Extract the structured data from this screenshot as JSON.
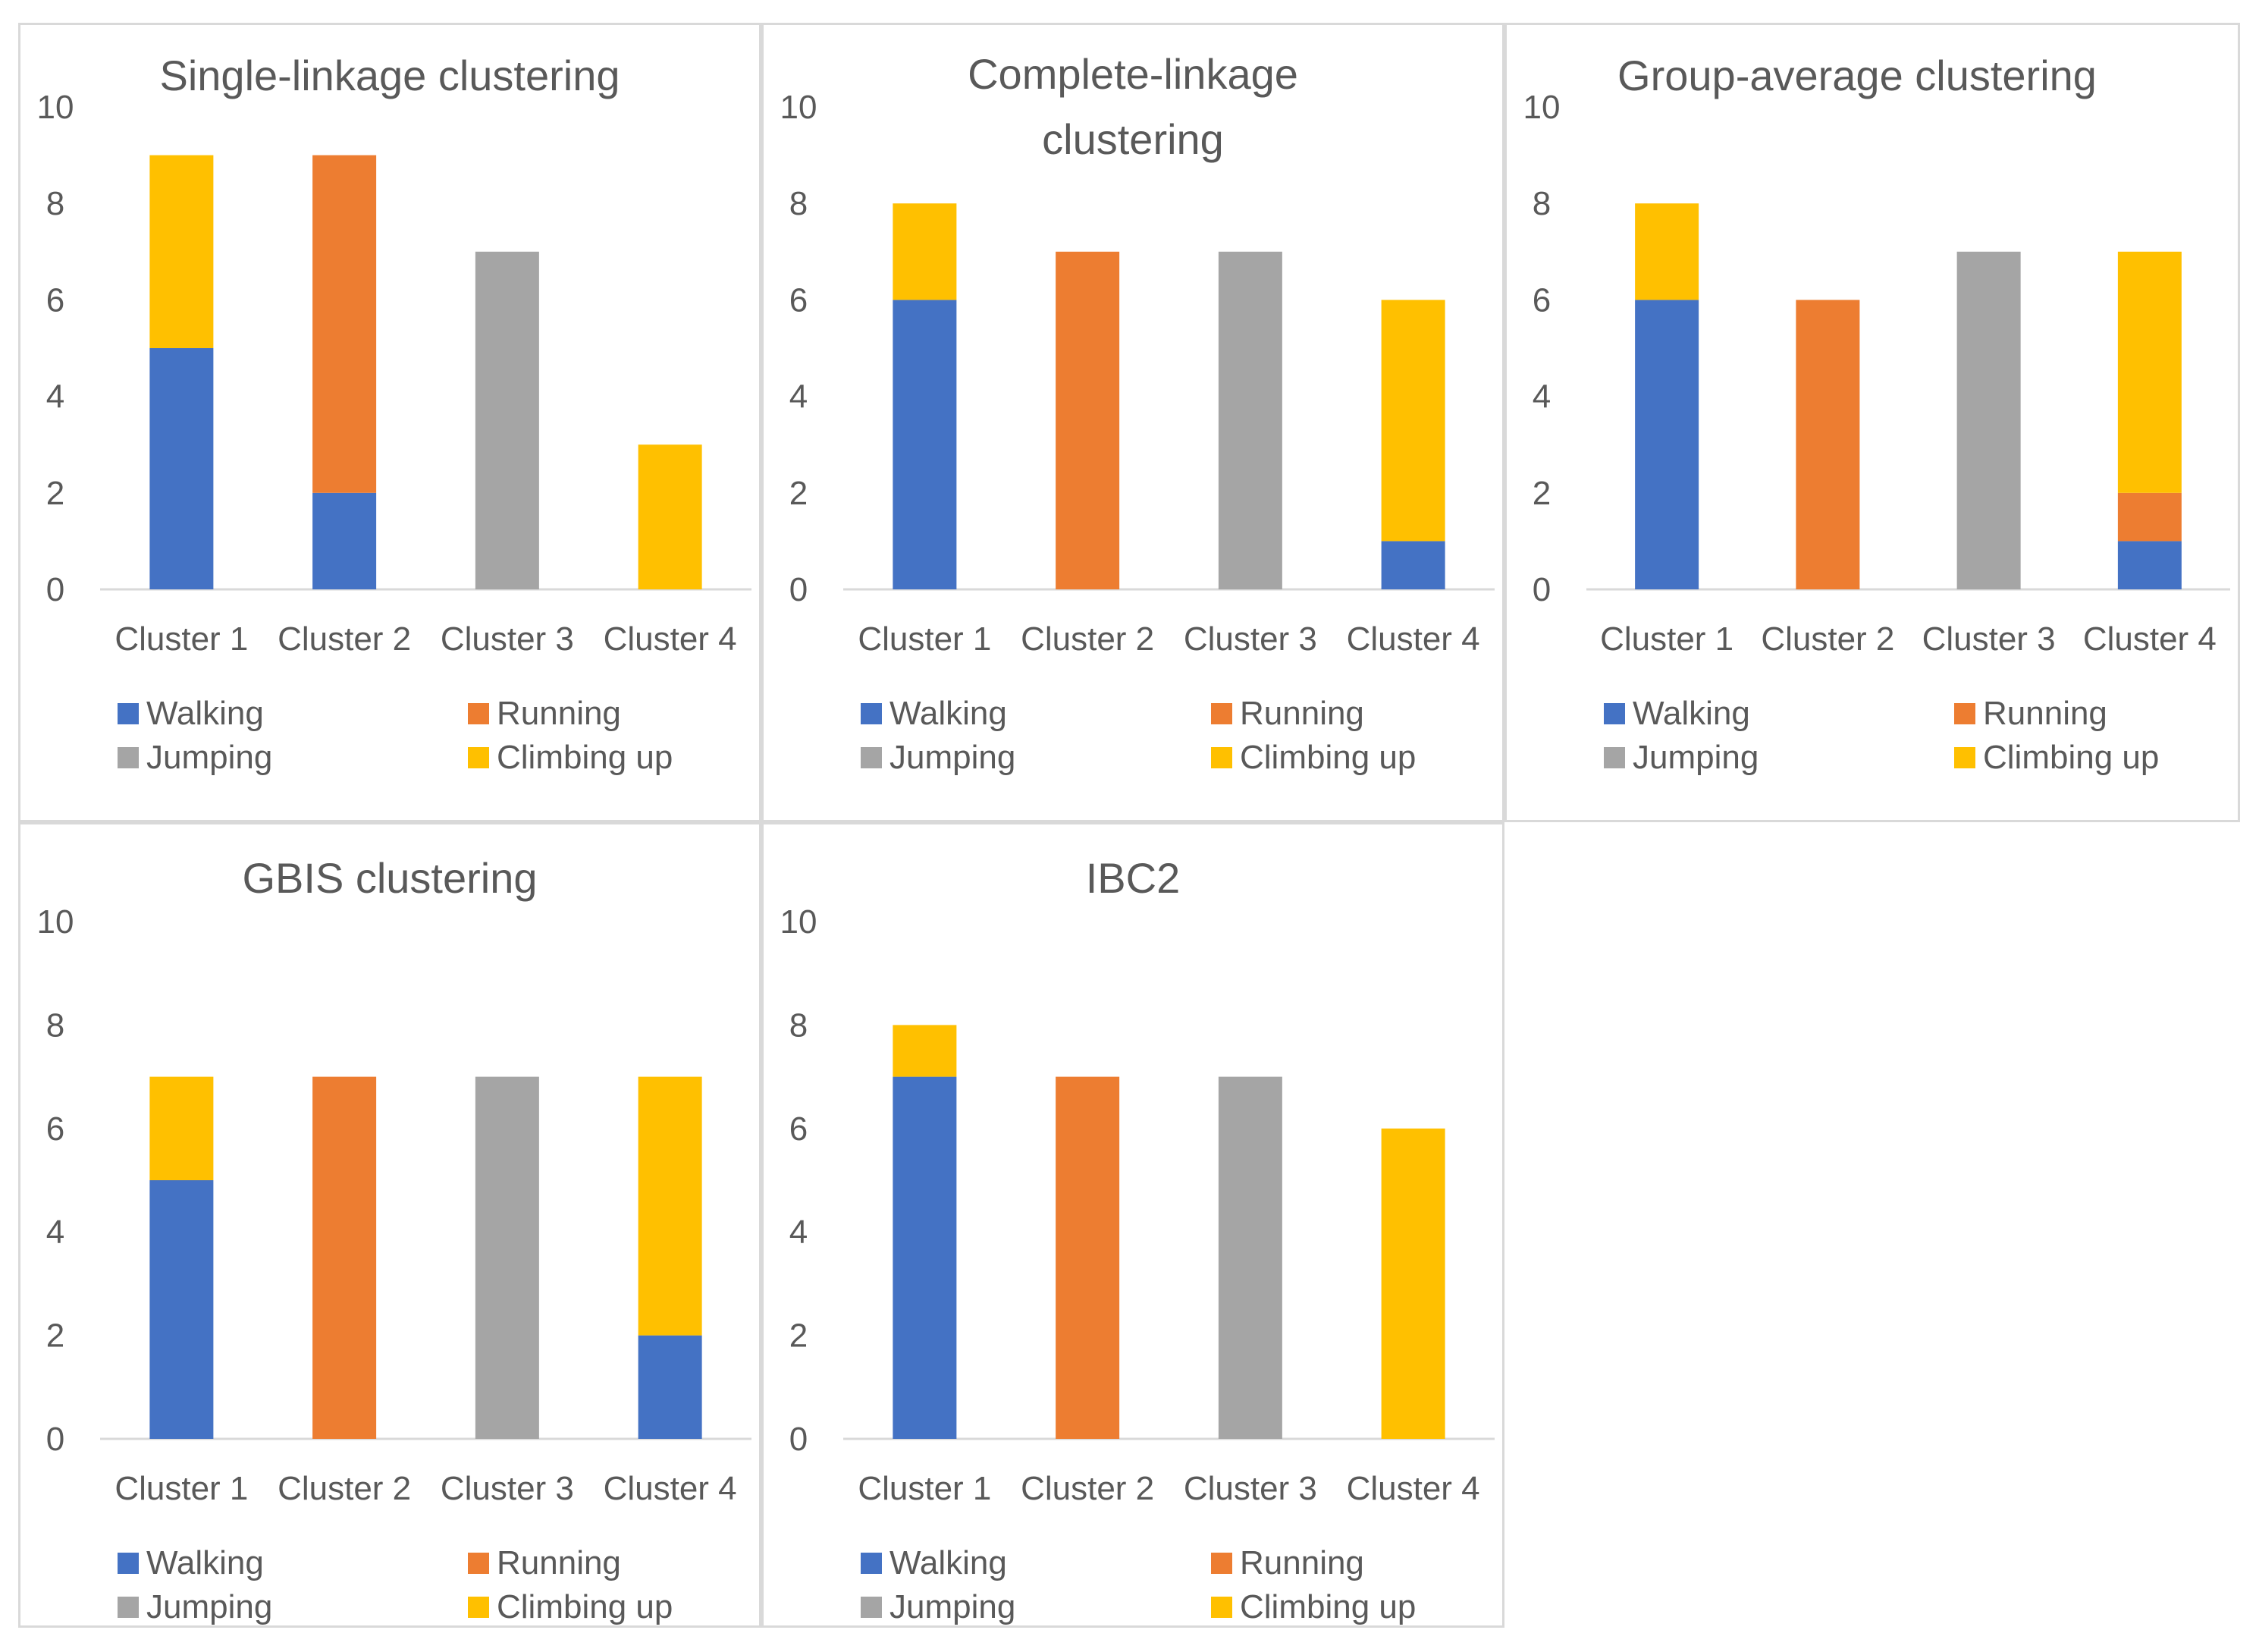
{
  "colors": {
    "Walking": "#4472c4",
    "Running": "#ed7d31",
    "Jumping": "#a5a5a5",
    "Climbing up": "#ffc000",
    "axis": "#d9d9d9",
    "text": "#595959"
  },
  "chart_data": [
    {
      "type": "bar",
      "stacked": true,
      "title": [
        "Single-linkage clustering"
      ],
      "categories": [
        "Cluster 1",
        "Cluster 2",
        "Cluster 3",
        "Cluster 4"
      ],
      "yticks": [
        "0",
        "2",
        "4",
        "6",
        "8",
        "10"
      ],
      "ylim": [
        0,
        10
      ],
      "grid": false,
      "legend_position": "bottom",
      "series": [
        {
          "name": "Walking",
          "values": [
            5,
            2,
            0,
            0
          ]
        },
        {
          "name": "Running",
          "values": [
            0,
            7,
            0,
            0
          ]
        },
        {
          "name": "Jumping",
          "values": [
            0,
            0,
            7,
            0
          ]
        },
        {
          "name": "Climbing up",
          "values": [
            4,
            0,
            0,
            3
          ]
        }
      ]
    },
    {
      "type": "bar",
      "stacked": true,
      "title": [
        "Complete-linkage",
        "clustering"
      ],
      "categories": [
        "Cluster 1",
        "Cluster 2",
        "Cluster 3",
        "Cluster 4"
      ],
      "yticks": [
        "0",
        "2",
        "4",
        "6",
        "8",
        "10"
      ],
      "ylim": [
        0,
        10
      ],
      "grid": false,
      "legend_position": "bottom",
      "series": [
        {
          "name": "Walking",
          "values": [
            6,
            0,
            0,
            1
          ]
        },
        {
          "name": "Running",
          "values": [
            0,
            7,
            0,
            0
          ]
        },
        {
          "name": "Jumping",
          "values": [
            0,
            0,
            7,
            0
          ]
        },
        {
          "name": "Climbing up",
          "values": [
            2,
            0,
            0,
            5
          ]
        }
      ]
    },
    {
      "type": "bar",
      "stacked": true,
      "title": [
        "Group-average clustering"
      ],
      "categories": [
        "Cluster 1",
        "Cluster 2",
        "Cluster 3",
        "Cluster 4"
      ],
      "yticks": [
        "0",
        "2",
        "4",
        "6",
        "8",
        "10"
      ],
      "ylim": [
        0,
        10
      ],
      "grid": false,
      "legend_position": "bottom",
      "series": [
        {
          "name": "Walking",
          "values": [
            6,
            0,
            0,
            1
          ]
        },
        {
          "name": "Running",
          "values": [
            0,
            6,
            0,
            1
          ]
        },
        {
          "name": "Jumping",
          "values": [
            0,
            0,
            7,
            0
          ]
        },
        {
          "name": "Climbing up",
          "values": [
            2,
            0,
            0,
            5
          ]
        }
      ]
    },
    {
      "type": "bar",
      "stacked": true,
      "title": [
        "GBIS clustering"
      ],
      "categories": [
        "Cluster 1",
        "Cluster 2",
        "Cluster 3",
        "Cluster 4"
      ],
      "yticks": [
        "0",
        "2",
        "4",
        "6",
        "8",
        "10"
      ],
      "ylim": [
        0,
        10
      ],
      "grid": false,
      "legend_position": "bottom",
      "series": [
        {
          "name": "Walking",
          "values": [
            5,
            0,
            0,
            2
          ]
        },
        {
          "name": "Running",
          "values": [
            0,
            7,
            0,
            0
          ]
        },
        {
          "name": "Jumping",
          "values": [
            0,
            0,
            7,
            0
          ]
        },
        {
          "name": "Climbing up",
          "values": [
            2,
            0,
            0,
            5
          ]
        }
      ]
    },
    {
      "type": "bar",
      "stacked": true,
      "title": [
        "IBC2"
      ],
      "categories": [
        "Cluster 1",
        "Cluster 2",
        "Cluster 3",
        "Cluster 4"
      ],
      "yticks": [
        "0",
        "2",
        "4",
        "6",
        "8",
        "10"
      ],
      "ylim": [
        0,
        10
      ],
      "grid": false,
      "legend_position": "bottom",
      "series": [
        {
          "name": "Walking",
          "values": [
            7,
            0,
            0,
            0
          ]
        },
        {
          "name": "Running",
          "values": [
            0,
            7,
            0,
            0
          ]
        },
        {
          "name": "Jumping",
          "values": [
            0,
            0,
            7,
            0
          ]
        },
        {
          "name": "Climbing up",
          "values": [
            1,
            0,
            0,
            6
          ]
        }
      ]
    }
  ]
}
